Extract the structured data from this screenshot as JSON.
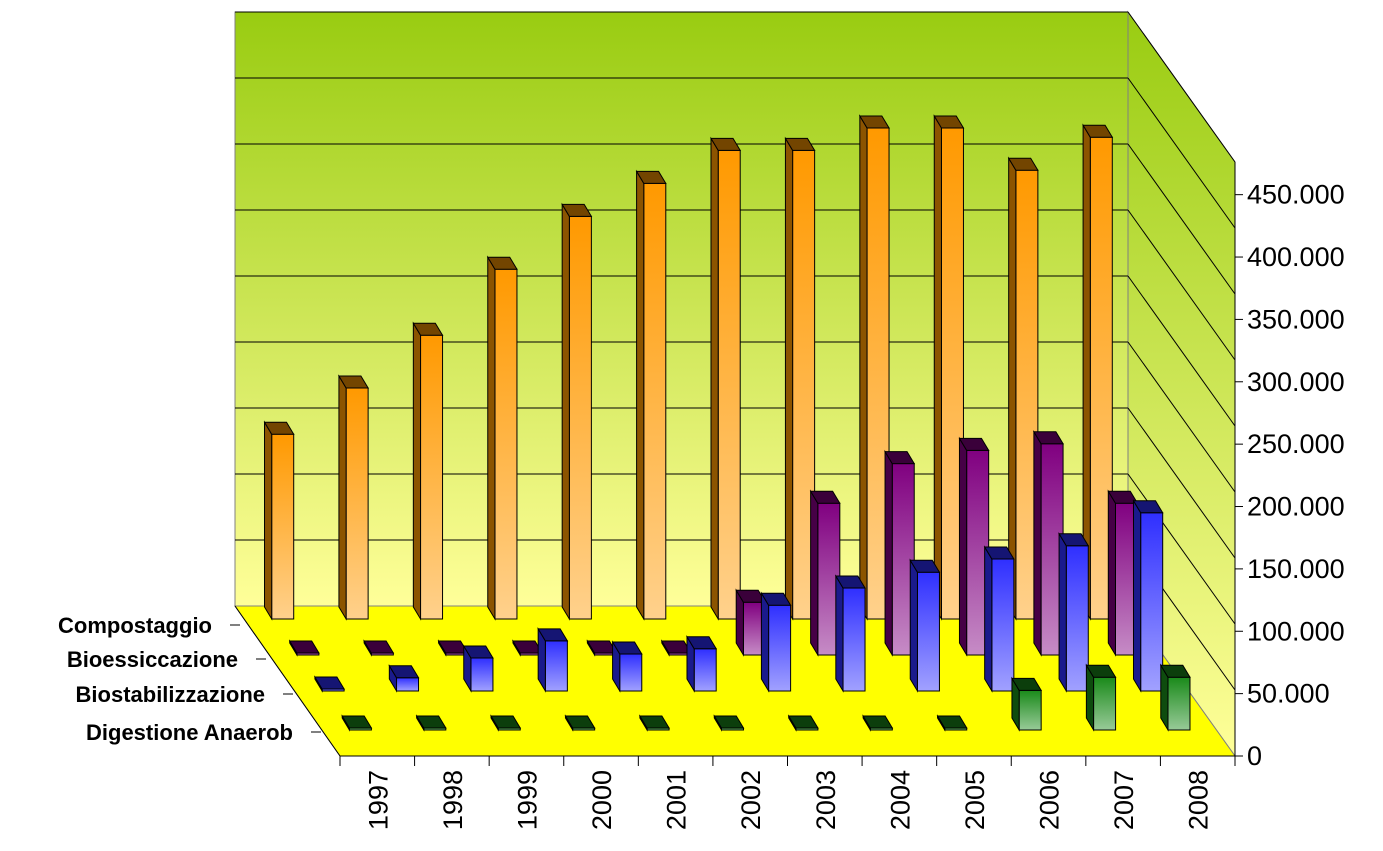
{
  "chart_data": {
    "type": "bar",
    "subtype": "3d-column",
    "categories": [
      "1997",
      "1998",
      "1999",
      "2000",
      "2001",
      "2002",
      "2003",
      "2004",
      "2005",
      "2006",
      "2007",
      "2008"
    ],
    "series": [
      {
        "name": "Compostaggio",
        "color": "#ff9900",
        "values": [
          140000,
          175000,
          215000,
          265000,
          305000,
          330000,
          355000,
          355000,
          372000,
          372000,
          340000,
          365000
        ]
      },
      {
        "name": "Bioessiccazione",
        "color": "#800080",
        "values": [
          0,
          0,
          0,
          0,
          0,
          0,
          40000,
          115000,
          145000,
          155000,
          160000,
          115000
        ]
      },
      {
        "name": "Biostabilizzazione",
        "color": "#2f2fff",
        "values": [
          0,
          10000,
          25000,
          38000,
          28000,
          32000,
          65000,
          78000,
          90000,
          100000,
          110000,
          135000
        ]
      },
      {
        "name": "Digestione Anaerob",
        "color": "#1a8a1a",
        "values": [
          0,
          0,
          0,
          0,
          0,
          0,
          0,
          0,
          0,
          30000,
          40000,
          40000
        ]
      }
    ],
    "yticks": [
      "0",
      "50.000",
      "100.000",
      "150.000",
      "200.000",
      "250.000",
      "300.000",
      "350.000",
      "400.000",
      "450.000"
    ],
    "ylim": [
      0,
      450000
    ],
    "grid": true,
    "colors": {
      "wall_top": "#99cc11",
      "wall_bottom": "#ffff99",
      "floor": "#ffff00"
    }
  }
}
